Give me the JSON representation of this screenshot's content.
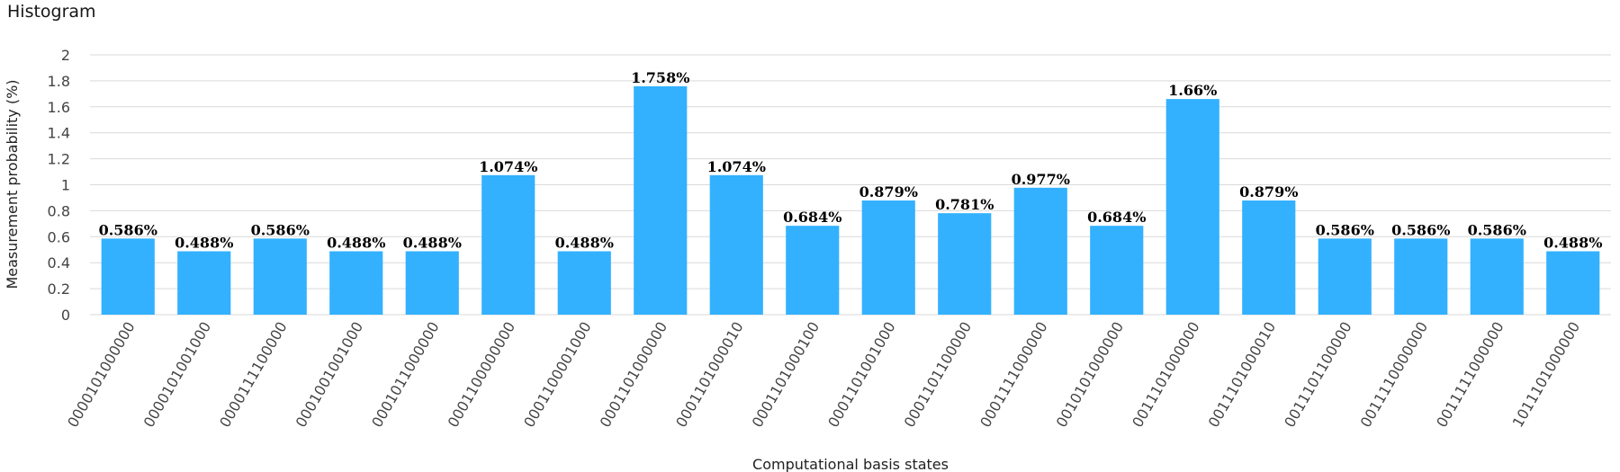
{
  "chart_data": {
    "type": "bar",
    "title": "Histogram",
    "xlabel": "Computational basis states",
    "ylabel": "Measurement probability (%)",
    "ylim": [
      0,
      2
    ],
    "yticks": [
      "0",
      "0.2",
      "0.4",
      "0.6",
      "0.8",
      "1",
      "1.2",
      "1.4",
      "1.6",
      "1.8",
      "2"
    ],
    "grid": true,
    "bar_color": "#33b1ff",
    "categories": [
      "0000101000000",
      "0000101001000",
      "0000111100000",
      "0001001001000",
      "0001011000000",
      "0001100000000",
      "0001100001000",
      "0001101000000",
      "0001101000010",
      "0001101000100",
      "0001101001000",
      "0001101100000",
      "0001111000000",
      "0010101000000",
      "0011101000000",
      "0011101000010",
      "0011101100000",
      "0011110000000",
      "0011111000000",
      "1011101000000"
    ],
    "values": [
      0.586,
      0.488,
      0.586,
      0.488,
      0.488,
      1.074,
      0.488,
      1.758,
      1.074,
      0.684,
      0.879,
      0.781,
      0.977,
      0.684,
      1.66,
      0.879,
      0.586,
      0.586,
      0.586,
      0.488
    ],
    "data_labels": [
      "0.586%",
      "0.488%",
      "0.586%",
      "0.488%",
      "0.488%",
      "1.074%",
      "0.488%",
      "1.758%",
      "1.074%",
      "0.684%",
      "0.879%",
      "0.781%",
      "0.977%",
      "0.684%",
      "1.66%",
      "0.879%",
      "0.586%",
      "0.586%",
      "0.586%",
      "0.488%"
    ]
  }
}
